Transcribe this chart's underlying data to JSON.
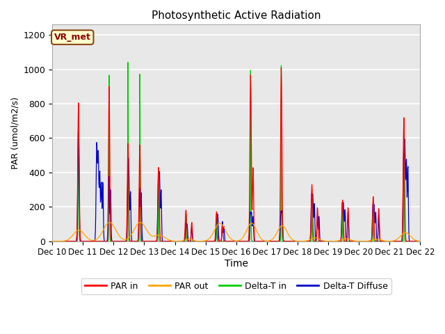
{
  "title": "Photosynthetic Active Radiation",
  "xlabel": "Time",
  "ylabel": "PAR (umol/m2/s)",
  "label_box": "VR_met",
  "ylim": [
    0,
    1260
  ],
  "yticks": [
    0,
    200,
    400,
    600,
    800,
    1000,
    1200
  ],
  "bg_color": "#e8e8e8",
  "grid_color": "white",
  "legend_items": [
    "PAR in",
    "PAR out",
    "Delta-T in",
    "Delta-T Diffuse"
  ],
  "legend_colors": [
    "#ff0000",
    "#ffa500",
    "#00cc00",
    "#0000cc"
  ],
  "line_colors": {
    "par_in": "#ff0000",
    "par_out": "#ffa500",
    "delta_t_in": "#00cc00",
    "delta_t_diffuse": "#0000cc"
  }
}
